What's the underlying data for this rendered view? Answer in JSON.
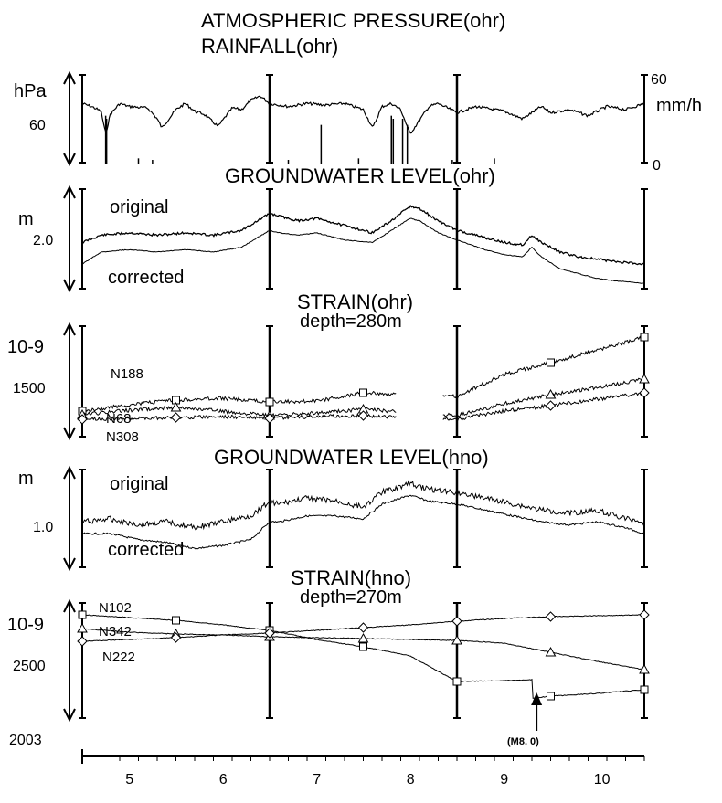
{
  "chart_data": [
    {
      "type": "line",
      "title": "ATMOSPHERIC PRESSURE(ohr)",
      "subtitle": "RAINFALL(ohr)",
      "ylabel": "hPa",
      "ylabel_right": "mm/h",
      "y_tick_left": "60",
      "y_tick_right_top": "60",
      "y_tick_right_bottom": "0",
      "series": [
        {
          "kind": "pressure",
          "x": [
            4.5,
            4.6,
            4.7,
            4.75,
            4.8,
            4.9,
            5.0,
            5.2,
            5.3,
            5.35,
            5.5,
            5.6,
            5.7,
            5.8,
            5.95,
            6.1,
            6.2,
            6.3,
            6.4,
            6.5,
            6.7,
            6.9,
            7.1,
            7.3,
            7.5,
            7.6,
            7.7,
            7.8,
            7.9,
            8.0,
            8.2,
            8.3,
            8.5,
            8.7,
            8.9,
            9.0,
            9.2,
            9.4,
            9.5,
            9.7,
            9.9,
            10.1,
            10.3,
            10.5
          ],
          "values": [
            40,
            38,
            35,
            20,
            33,
            40,
            38,
            37,
            30,
            24,
            36,
            40,
            35,
            33,
            25,
            37,
            36,
            42,
            45,
            40,
            38,
            40,
            39,
            40,
            36,
            24,
            38,
            40,
            36,
            20,
            38,
            40,
            34,
            38,
            36,
            35,
            30,
            38,
            34,
            36,
            32,
            38,
            36,
            40
          ]
        },
        {
          "kind": "rainfall",
          "x": [
            4.75,
            4.76,
            5.1,
            5.25,
            6.5,
            6.7,
            7.05,
            7.45,
            7.8,
            7.82,
            7.92,
            7.97,
            8.45,
            8.9
          ],
          "values": [
            32,
            30,
            4,
            3,
            5,
            3,
            26,
            4,
            32,
            30,
            30,
            26,
            3,
            4
          ]
        }
      ]
    },
    {
      "type": "line",
      "title": "GROUNDWATER LEVEL(ohr)",
      "ylabel": "m",
      "y_tick": "2.0",
      "series": [
        {
          "name": "original",
          "x": [
            4.5,
            4.7,
            5.0,
            5.3,
            5.6,
            5.9,
            6.2,
            6.5,
            6.6,
            6.8,
            7.0,
            7.3,
            7.6,
            7.8,
            8.0,
            8.1,
            8.3,
            8.5,
            8.8,
            9.0,
            9.2,
            9.3,
            9.4,
            9.6,
            9.8,
            10.0,
            10.2,
            10.5
          ],
          "values": [
            2.3,
            2.45,
            2.5,
            2.45,
            2.5,
            2.45,
            2.55,
            2.9,
            2.85,
            2.75,
            2.8,
            2.65,
            2.5,
            2.75,
            3.05,
            3.0,
            2.75,
            2.55,
            2.4,
            2.3,
            2.25,
            2.45,
            2.3,
            2.1,
            2.0,
            1.95,
            1.9,
            1.85
          ]
        },
        {
          "name": "corrected",
          "x": [
            4.5,
            4.7,
            5.0,
            5.3,
            5.6,
            5.9,
            6.2,
            6.5,
            6.6,
            6.8,
            7.0,
            7.3,
            7.6,
            7.8,
            8.0,
            8.1,
            8.3,
            8.5,
            8.8,
            9.0,
            9.2,
            9.3,
            9.4,
            9.6,
            9.8,
            10.0,
            10.2,
            10.5
          ],
          "values": [
            1.85,
            2.1,
            2.15,
            2.1,
            2.15,
            2.1,
            2.2,
            2.55,
            2.5,
            2.45,
            2.5,
            2.35,
            2.3,
            2.55,
            2.8,
            2.75,
            2.5,
            2.35,
            2.15,
            2.05,
            2.0,
            2.2,
            2.0,
            1.75,
            1.65,
            1.55,
            1.5,
            1.45
          ]
        }
      ]
    },
    {
      "type": "line",
      "title": "STRAIN(ohr)",
      "subtitle": "depth=280m",
      "ylabel": "10-9",
      "y_tick": "1500",
      "series": [
        {
          "name": "N188",
          "x": [
            4.5,
            5.0,
            5.5,
            6.0,
            6.5,
            7.0,
            7.5,
            8.5,
            9.0,
            9.5,
            10.0,
            10.5
          ],
          "values": [
            1500,
            1570,
            1620,
            1640,
            1600,
            1610,
            1700,
            1660,
            1900,
            2030,
            2170,
            2310
          ]
        },
        {
          "name": "N68",
          "x": [
            4.5,
            5.0,
            5.5,
            6.0,
            6.5,
            7.0,
            7.5,
            8.5,
            9.0,
            9.5,
            10.0,
            10.5
          ],
          "values": [
            1460,
            1510,
            1540,
            1500,
            1450,
            1480,
            1520,
            1450,
            1580,
            1680,
            1760,
            1850
          ]
        },
        {
          "name": "N308",
          "x": [
            4.5,
            5.0,
            5.5,
            6.0,
            6.5,
            7.0,
            7.5,
            8.5,
            9.0,
            9.5,
            10.0,
            10.5
          ],
          "values": [
            1410,
            1420,
            1430,
            1440,
            1420,
            1440,
            1450,
            1410,
            1500,
            1560,
            1630,
            1700
          ]
        }
      ],
      "gap": [
        7.85,
        8.35
      ]
    },
    {
      "type": "line",
      "title": "GROUNDWATER LEVEL(hno)",
      "ylabel": "m",
      "y_tick": "1.0",
      "series": [
        {
          "name": "original",
          "x": [
            4.5,
            4.8,
            5.1,
            5.4,
            5.7,
            6.0,
            6.3,
            6.5,
            6.6,
            6.9,
            7.2,
            7.5,
            7.7,
            8.0,
            8.2,
            8.5,
            8.8,
            9.1,
            9.4,
            9.7,
            10.0,
            10.3,
            10.5
          ],
          "values": [
            1.4,
            1.45,
            1.35,
            1.4,
            1.3,
            1.4,
            1.5,
            1.75,
            1.7,
            1.8,
            1.75,
            1.65,
            1.9,
            2.05,
            1.95,
            1.9,
            1.8,
            1.7,
            1.6,
            1.55,
            1.6,
            1.45,
            1.4
          ]
        },
        {
          "name": "corrected",
          "x": [
            4.5,
            4.8,
            5.1,
            5.4,
            5.7,
            6.0,
            6.3,
            6.5,
            6.6,
            6.9,
            7.2,
            7.5,
            7.7,
            8.0,
            8.2,
            8.5,
            8.8,
            9.1,
            9.4,
            9.7,
            10.0,
            10.3,
            10.5
          ],
          "values": [
            1.2,
            1.2,
            1.1,
            1.05,
            0.95,
            1.0,
            1.1,
            1.4,
            1.4,
            1.5,
            1.5,
            1.45,
            1.7,
            1.85,
            1.75,
            1.7,
            1.6,
            1.5,
            1.4,
            1.35,
            1.4,
            1.3,
            1.2
          ]
        }
      ]
    },
    {
      "type": "line",
      "title": "STRAIN(hno)",
      "subtitle": "depth=270m",
      "ylabel": "10-9",
      "y_tick": "2500",
      "annotation": "(M8. 0)",
      "annotation_x": 9.35,
      "series": [
        {
          "name": "N102",
          "x": [
            4.5,
            5.0,
            5.5,
            6.0,
            6.5,
            7.0,
            7.5,
            8.0,
            8.5,
            9.0,
            9.3,
            9.31,
            9.5,
            10.0,
            10.5
          ],
          "values": [
            3050,
            3020,
            2990,
            2940,
            2880,
            2780,
            2700,
            2600,
            2320,
            2330,
            2340,
            2140,
            2160,
            2190,
            2230
          ]
        },
        {
          "name": "N342",
          "x": [
            4.5,
            5.0,
            5.5,
            6.0,
            6.5,
            7.0,
            7.5,
            8.0,
            8.5,
            9.0,
            9.5,
            10.0,
            10.5
          ],
          "values": [
            2900,
            2860,
            2840,
            2830,
            2810,
            2800,
            2790,
            2780,
            2770,
            2740,
            2640,
            2540,
            2450
          ]
        },
        {
          "name": "N222",
          "x": [
            4.5,
            5.0,
            5.5,
            6.0,
            6.5,
            7.0,
            7.5,
            8.0,
            8.5,
            9.0,
            9.5,
            10.0,
            10.5
          ],
          "values": [
            2760,
            2780,
            2800,
            2830,
            2850,
            2880,
            2910,
            2940,
            2980,
            3010,
            3030,
            3040,
            3050
          ]
        }
      ]
    }
  ],
  "time_axis": {
    "year_label": "2003",
    "months": [
      "5",
      "6",
      "7",
      "8",
      "9",
      "10"
    ]
  },
  "colors": {
    "ink": "#000000",
    "background": "#ffffff"
  }
}
